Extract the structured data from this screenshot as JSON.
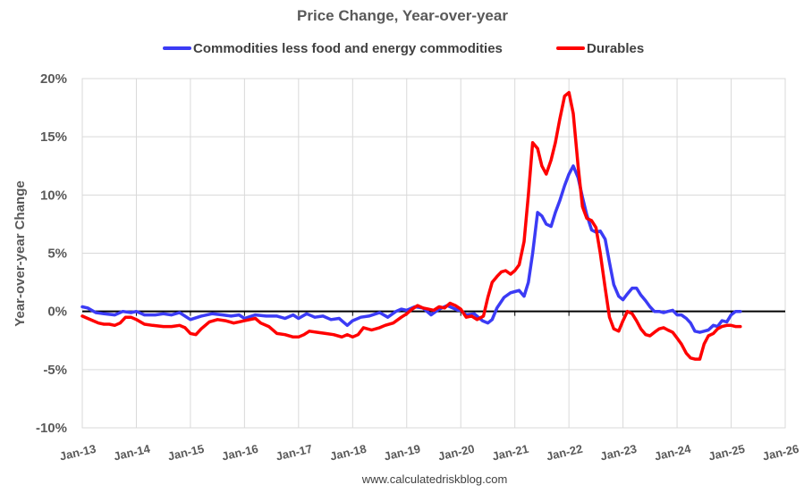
{
  "chart_data": {
    "type": "line",
    "title": "Price Change, Year-over-year",
    "ylabel": "Year-over-year Change",
    "xlabel": "",
    "source": "www.calculatedriskblog.com",
    "ylim": [
      -10,
      20
    ],
    "yticks": [
      -10,
      -5,
      0,
      5,
      10,
      15,
      20
    ],
    "ytick_labels": [
      "-10%",
      "-5%",
      "0%",
      "5%",
      "10%",
      "15%",
      "20%"
    ],
    "xlim": [
      2013.0,
      2026.0
    ],
    "xticks": [
      2013,
      2014,
      2015,
      2016,
      2017,
      2018,
      2019,
      2020,
      2021,
      2022,
      2023,
      2024,
      2025,
      2026
    ],
    "xtick_labels": [
      "Jan-13",
      "Jan-14",
      "Jan-15",
      "Jan-16",
      "Jan-17",
      "Jan-18",
      "Jan-19",
      "Jan-20",
      "Jan-21",
      "Jan-22",
      "Jan-23",
      "Jan-24",
      "Jan-25",
      "Jan-26"
    ],
    "grid": true,
    "legend_position": "top",
    "series": [
      {
        "name": "Commodities less food and energy commodities",
        "color": "#3b3bf5",
        "x": [
          2013.0,
          2013.1,
          2013.25,
          2013.4,
          2013.6,
          2013.75,
          2013.9,
          2014.0,
          2014.15,
          2014.35,
          2014.5,
          2014.65,
          2014.8,
          2015.0,
          2015.2,
          2015.4,
          2015.6,
          2015.75,
          2015.9,
          2016.0,
          2016.2,
          2016.4,
          2016.6,
          2016.75,
          2016.9,
          2017.0,
          2017.15,
          2017.3,
          2017.45,
          2017.6,
          2017.75,
          2017.9,
          2018.0,
          2018.15,
          2018.3,
          2018.5,
          2018.65,
          2018.8,
          2018.9,
          2019.0,
          2019.15,
          2019.3,
          2019.45,
          2019.6,
          2019.75,
          2019.85,
          2019.95,
          2020.0,
          2020.1,
          2020.25,
          2020.4,
          2020.5,
          2020.58,
          2020.67,
          2020.8,
          2020.92,
          2021.0,
          2021.08,
          2021.17,
          2021.25,
          2021.33,
          2021.42,
          2021.5,
          2021.58,
          2021.67,
          2021.75,
          2021.83,
          2021.92,
          2022.0,
          2022.08,
          2022.17,
          2022.25,
          2022.33,
          2022.42,
          2022.5,
          2022.58,
          2022.67,
          2022.75,
          2022.83,
          2022.92,
          2023.0,
          2023.08,
          2023.17,
          2023.25,
          2023.33,
          2023.42,
          2023.5,
          2023.58,
          2023.67,
          2023.75,
          2023.83,
          2023.92,
          2024.0,
          2024.08,
          2024.17,
          2024.25,
          2024.33,
          2024.42,
          2024.5,
          2024.58,
          2024.67,
          2024.75,
          2024.83,
          2024.92,
          2025.0,
          2025.08,
          2025.17
        ],
        "y": [
          0.4,
          0.3,
          -0.1,
          -0.2,
          -0.3,
          0.0,
          -0.1,
          0.0,
          -0.3,
          -0.3,
          -0.2,
          -0.3,
          -0.1,
          -0.7,
          -0.4,
          -0.2,
          -0.3,
          -0.4,
          -0.3,
          -0.6,
          -0.3,
          -0.4,
          -0.4,
          -0.6,
          -0.3,
          -0.6,
          -0.2,
          -0.5,
          -0.4,
          -0.7,
          -0.6,
          -1.2,
          -0.8,
          -0.5,
          -0.4,
          -0.1,
          -0.5,
          0.0,
          0.2,
          0.1,
          0.4,
          0.3,
          -0.3,
          0.2,
          0.5,
          0.3,
          0.1,
          0.1,
          -0.3,
          -0.2,
          -0.8,
          -1.0,
          -0.7,
          0.3,
          1.2,
          1.6,
          1.7,
          1.8,
          1.3,
          2.5,
          5.0,
          8.5,
          8.2,
          7.5,
          7.3,
          8.5,
          9.5,
          10.8,
          11.8,
          12.5,
          11.5,
          9.8,
          8.3,
          7.0,
          6.8,
          6.9,
          6.2,
          4.2,
          2.3,
          1.3,
          1.0,
          1.5,
          2.0,
          2.0,
          1.4,
          0.9,
          0.4,
          0.0,
          0.0,
          -0.1,
          0.0,
          0.1,
          -0.3,
          -0.3,
          -0.6,
          -1.0,
          -1.7,
          -1.8,
          -1.7,
          -1.6,
          -1.2,
          -1.3,
          -0.8,
          -0.9,
          -0.3,
          0.0,
          0.0
        ]
      },
      {
        "name": "Durables",
        "color": "#ff0000",
        "x": [
          2013.0,
          2013.1,
          2013.2,
          2013.3,
          2013.4,
          2013.5,
          2013.6,
          2013.7,
          2013.8,
          2013.9,
          2014.0,
          2014.15,
          2014.3,
          2014.5,
          2014.65,
          2014.8,
          2014.9,
          2015.0,
          2015.1,
          2015.2,
          2015.35,
          2015.5,
          2015.65,
          2015.8,
          2015.9,
          2016.0,
          2016.1,
          2016.2,
          2016.3,
          2016.45,
          2016.6,
          2016.75,
          2016.9,
          2017.0,
          2017.1,
          2017.2,
          2017.35,
          2017.5,
          2017.65,
          2017.8,
          2017.9,
          2018.0,
          2018.1,
          2018.2,
          2018.35,
          2018.5,
          2018.6,
          2018.75,
          2018.9,
          2019.0,
          2019.1,
          2019.2,
          2019.3,
          2019.4,
          2019.5,
          2019.6,
          2019.7,
          2019.8,
          2019.9,
          2020.0,
          2020.1,
          2020.2,
          2020.3,
          2020.42,
          2020.5,
          2020.58,
          2020.67,
          2020.75,
          2020.83,
          2020.92,
          2021.0,
          2021.08,
          2021.17,
          2021.25,
          2021.33,
          2021.42,
          2021.5,
          2021.58,
          2021.67,
          2021.75,
          2021.83,
          2021.92,
          2022.0,
          2022.08,
          2022.17,
          2022.25,
          2022.33,
          2022.42,
          2022.5,
          2022.58,
          2022.67,
          2022.75,
          2022.83,
          2022.92,
          2023.0,
          2023.08,
          2023.17,
          2023.25,
          2023.33,
          2023.42,
          2023.5,
          2023.58,
          2023.67,
          2023.75,
          2023.83,
          2023.92,
          2024.0,
          2024.08,
          2024.17,
          2024.25,
          2024.33,
          2024.42,
          2024.5,
          2024.58,
          2024.67,
          2024.75,
          2024.83,
          2024.92,
          2025.0,
          2025.08,
          2025.17
        ],
        "y": [
          -0.4,
          -0.6,
          -0.8,
          -1.0,
          -1.1,
          -1.1,
          -1.2,
          -1.0,
          -0.5,
          -0.5,
          -0.7,
          -1.1,
          -1.2,
          -1.3,
          -1.3,
          -1.2,
          -1.4,
          -1.9,
          -2.0,
          -1.5,
          -0.9,
          -0.7,
          -0.8,
          -1.0,
          -0.9,
          -0.8,
          -0.7,
          -0.6,
          -1.0,
          -1.3,
          -1.9,
          -2.0,
          -2.2,
          -2.2,
          -2.0,
          -1.7,
          -1.8,
          -1.9,
          -2.0,
          -2.2,
          -2.0,
          -2.2,
          -2.0,
          -1.4,
          -1.6,
          -1.4,
          -1.2,
          -1.0,
          -0.5,
          -0.2,
          0.2,
          0.5,
          0.3,
          0.2,
          0.1,
          0.4,
          0.3,
          0.7,
          0.5,
          0.2,
          -0.5,
          -0.4,
          -0.7,
          -0.4,
          1.2,
          2.5,
          3.0,
          3.4,
          3.5,
          3.2,
          3.5,
          4.0,
          6.0,
          10.0,
          14.5,
          14.0,
          12.5,
          11.8,
          13.0,
          14.5,
          16.5,
          18.5,
          18.8,
          17.0,
          12.5,
          9.0,
          8.0,
          7.8,
          7.2,
          5.0,
          2.0,
          -0.5,
          -1.5,
          -1.7,
          -0.8,
          0.0,
          -0.2,
          -0.8,
          -1.5,
          -2.0,
          -2.1,
          -1.8,
          -1.5,
          -1.4,
          -1.6,
          -1.8,
          -2.3,
          -2.8,
          -3.6,
          -4.0,
          -4.1,
          -4.1,
          -2.8,
          -2.1,
          -1.9,
          -1.5,
          -1.3,
          -1.2,
          -1.2,
          -1.3,
          -1.3
        ]
      }
    ]
  }
}
